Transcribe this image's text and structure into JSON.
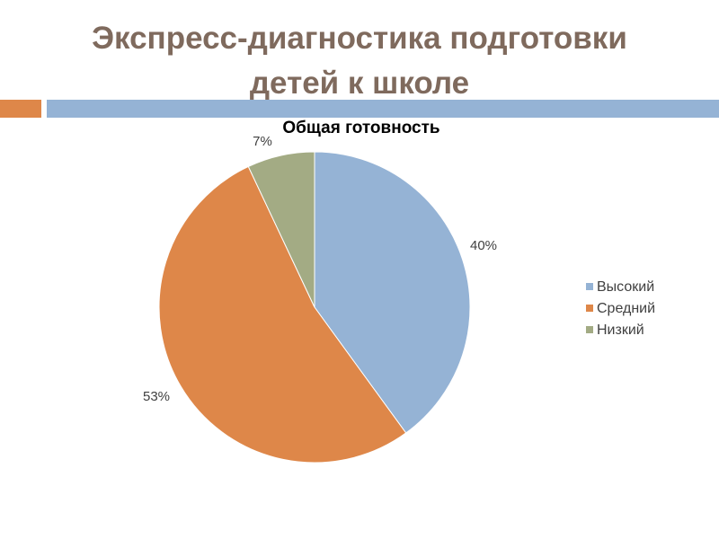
{
  "slide": {
    "title_line1": "Экспресс-диагностика подготовки",
    "title_line2": "детей к школе"
  },
  "colors": {
    "title": "#7f6a5d",
    "divider_orange": "#de8749",
    "divider_blue": "#95b3d5"
  },
  "chart_data": {
    "type": "pie",
    "title": "Общая готовность",
    "legend_position": "right",
    "slices": [
      {
        "label": "Высокий",
        "value": 40,
        "display": "40%",
        "color": "#95b3d5"
      },
      {
        "label": "Средний",
        "value": 53,
        "display": "53%",
        "color": "#de8749"
      },
      {
        "label": "Низкий",
        "value": 7,
        "display": "7%",
        "color": "#a3ab84"
      }
    ]
  }
}
